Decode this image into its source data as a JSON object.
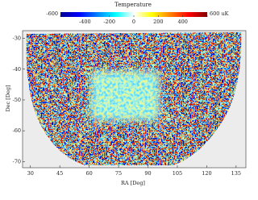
{
  "chart_data": {
    "type": "heatmap",
    "colorbar": {
      "title": "Temperature",
      "lim": [
        -600,
        600
      ],
      "ticks": [
        -600,
        -400,
        -200,
        0,
        200,
        400,
        {
          "value": 600,
          "label": "600 uK"
        }
      ]
    },
    "xlabel": "RA [Deg]",
    "ylabel": "Dec [Deg]",
    "xlim": [
      26,
      140
    ],
    "xticks": [
      30,
      45,
      60,
      75,
      90,
      105,
      120,
      135
    ],
    "ylim": [
      -72,
      -27.5
    ],
    "yticks": [
      -70,
      -60,
      -50,
      -40,
      -30
    ]
  }
}
